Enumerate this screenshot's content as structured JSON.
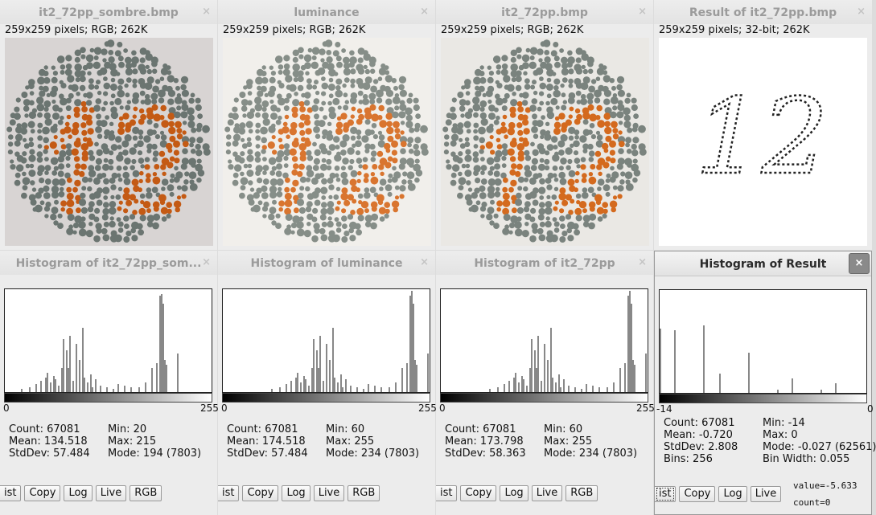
{
  "windows": [
    {
      "title": "it2_72pp_sombre.bmp",
      "info": "259x259 pixels; RGB; 262K",
      "close": "×",
      "variant": "dark"
    },
    {
      "title": "luminance",
      "info": "259x259 pixels; RGB; 262K",
      "close": "×",
      "variant": "light"
    },
    {
      "title": "it2_72pp.bmp",
      "info": "259x259 pixels; RGB; 262K",
      "close": "×",
      "variant": "normal"
    },
    {
      "title": "Result of it2_72pp.bmp",
      "info": "259x259 pixels; 32-bit; 262K",
      "close": "×",
      "variant": "result",
      "digits": "12"
    }
  ],
  "histograms": [
    {
      "title": "Histogram of it2_72pp_som...",
      "active": false,
      "close": "×",
      "x_min": "0",
      "x_max": "255",
      "stats_left": [
        "Count: 67081",
        "Mean: 134.518",
        "StdDev: 57.484"
      ],
      "stats_right": [
        "Min: 20",
        "Max: 215",
        "Mode: 194 (7803)"
      ],
      "buttons": [
        "ist",
        "Copy",
        "Log",
        "Live",
        "RGB"
      ],
      "bars": [
        [
          20,
          4
        ],
        [
          30,
          6
        ],
        [
          38,
          10
        ],
        [
          44,
          14
        ],
        [
          50,
          18
        ],
        [
          52,
          24
        ],
        [
          56,
          12
        ],
        [
          60,
          20
        ],
        [
          62,
          16
        ],
        [
          66,
          8
        ],
        [
          70,
          30
        ],
        [
          72,
          66
        ],
        [
          76,
          52
        ],
        [
          78,
          30
        ],
        [
          80,
          70
        ],
        [
          84,
          14
        ],
        [
          88,
          60
        ],
        [
          92,
          40
        ],
        [
          96,
          80
        ],
        [
          98,
          18
        ],
        [
          102,
          12
        ],
        [
          106,
          22
        ],
        [
          108,
          6
        ],
        [
          112,
          16
        ],
        [
          118,
          8
        ],
        [
          126,
          6
        ],
        [
          134,
          4
        ],
        [
          140,
          10
        ],
        [
          148,
          8
        ],
        [
          156,
          6
        ],
        [
          166,
          6
        ],
        [
          174,
          12
        ],
        [
          182,
          30
        ],
        [
          188,
          36
        ],
        [
          192,
          120
        ],
        [
          194,
          122
        ],
        [
          196,
          110
        ],
        [
          198,
          40
        ],
        [
          200,
          34
        ],
        [
          214,
          48
        ]
      ]
    },
    {
      "title": "Histogram of luminance",
      "active": false,
      "close": "×",
      "x_min": "0",
      "x_max": "255",
      "stats_left": [
        "Count: 67081",
        "Mean: 174.518",
        "StdDev: 57.484"
      ],
      "stats_right": [
        "Min: 60",
        "Max: 255",
        "Mode: 234 (7803)"
      ],
      "buttons": [
        "ist",
        "Copy",
        "Log",
        "Live",
        "RGB"
      ],
      "bars": [
        [
          60,
          4
        ],
        [
          70,
          6
        ],
        [
          78,
          10
        ],
        [
          84,
          14
        ],
        [
          90,
          18
        ],
        [
          92,
          24
        ],
        [
          96,
          12
        ],
        [
          100,
          20
        ],
        [
          102,
          16
        ],
        [
          106,
          8
        ],
        [
          110,
          30
        ],
        [
          112,
          66
        ],
        [
          116,
          52
        ],
        [
          118,
          30
        ],
        [
          120,
          70
        ],
        [
          124,
          14
        ],
        [
          128,
          60
        ],
        [
          132,
          40
        ],
        [
          136,
          80
        ],
        [
          138,
          18
        ],
        [
          142,
          12
        ],
        [
          146,
          22
        ],
        [
          148,
          6
        ],
        [
          152,
          16
        ],
        [
          158,
          8
        ],
        [
          166,
          6
        ],
        [
          174,
          4
        ],
        [
          180,
          10
        ],
        [
          188,
          8
        ],
        [
          196,
          6
        ],
        [
          206,
          6
        ],
        [
          214,
          12
        ],
        [
          222,
          30
        ],
        [
          228,
          36
        ],
        [
          232,
          120
        ],
        [
          234,
          126
        ],
        [
          236,
          110
        ],
        [
          238,
          40
        ],
        [
          240,
          34
        ],
        [
          254,
          48
        ]
      ]
    },
    {
      "title": "Histogram of it2_72pp",
      "active": false,
      "close": "×",
      "x_min": "0",
      "x_max": "255",
      "stats_left": [
        "Count: 67081",
        "Mean: 173.798",
        "StdDev: 58.363"
      ],
      "stats_right": [
        "Min: 60",
        "Max: 255",
        "Mode: 234 (7803)"
      ],
      "buttons": [
        "ist",
        "Copy",
        "Log",
        "Live",
        "RGB"
      ],
      "bars": [
        [
          60,
          4
        ],
        [
          70,
          6
        ],
        [
          78,
          10
        ],
        [
          84,
          14
        ],
        [
          90,
          18
        ],
        [
          92,
          24
        ],
        [
          96,
          12
        ],
        [
          100,
          20
        ],
        [
          102,
          16
        ],
        [
          106,
          8
        ],
        [
          110,
          30
        ],
        [
          112,
          66
        ],
        [
          116,
          52
        ],
        [
          118,
          30
        ],
        [
          120,
          70
        ],
        [
          124,
          14
        ],
        [
          128,
          60
        ],
        [
          132,
          40
        ],
        [
          136,
          80
        ],
        [
          138,
          18
        ],
        [
          142,
          12
        ],
        [
          146,
          22
        ],
        [
          148,
          6
        ],
        [
          152,
          16
        ],
        [
          158,
          8
        ],
        [
          166,
          6
        ],
        [
          174,
          4
        ],
        [
          180,
          10
        ],
        [
          188,
          8
        ],
        [
          196,
          6
        ],
        [
          206,
          6
        ],
        [
          214,
          12
        ],
        [
          222,
          30
        ],
        [
          228,
          36
        ],
        [
          232,
          120
        ],
        [
          234,
          126
        ],
        [
          236,
          110
        ],
        [
          238,
          40
        ],
        [
          240,
          34
        ],
        [
          254,
          48
        ]
      ]
    },
    {
      "title": "Histogram of Result",
      "active": true,
      "close": "×",
      "x_min": "-14",
      "x_max": "0",
      "stats_left": [
        "Count: 67081",
        "Mean: -0.720",
        "StdDev: 2.808",
        "Bins: 256"
      ],
      "stats_right": [
        "Min: -14",
        "Max: 0",
        "Mode: -0.027 (62561)",
        "Bin Width: 0.055"
      ],
      "buttons": [
        "ist",
        "Copy",
        "Log",
        "Live"
      ],
      "value": "value=-5.633",
      "count": "count=0",
      "bars": [
        [
          0,
          80
        ],
        [
          18,
          78
        ],
        [
          54,
          84
        ],
        [
          74,
          24
        ],
        [
          110,
          50
        ],
        [
          146,
          4
        ],
        [
          164,
          18
        ],
        [
          200,
          4
        ],
        [
          218,
          12
        ]
      ]
    }
  ]
}
